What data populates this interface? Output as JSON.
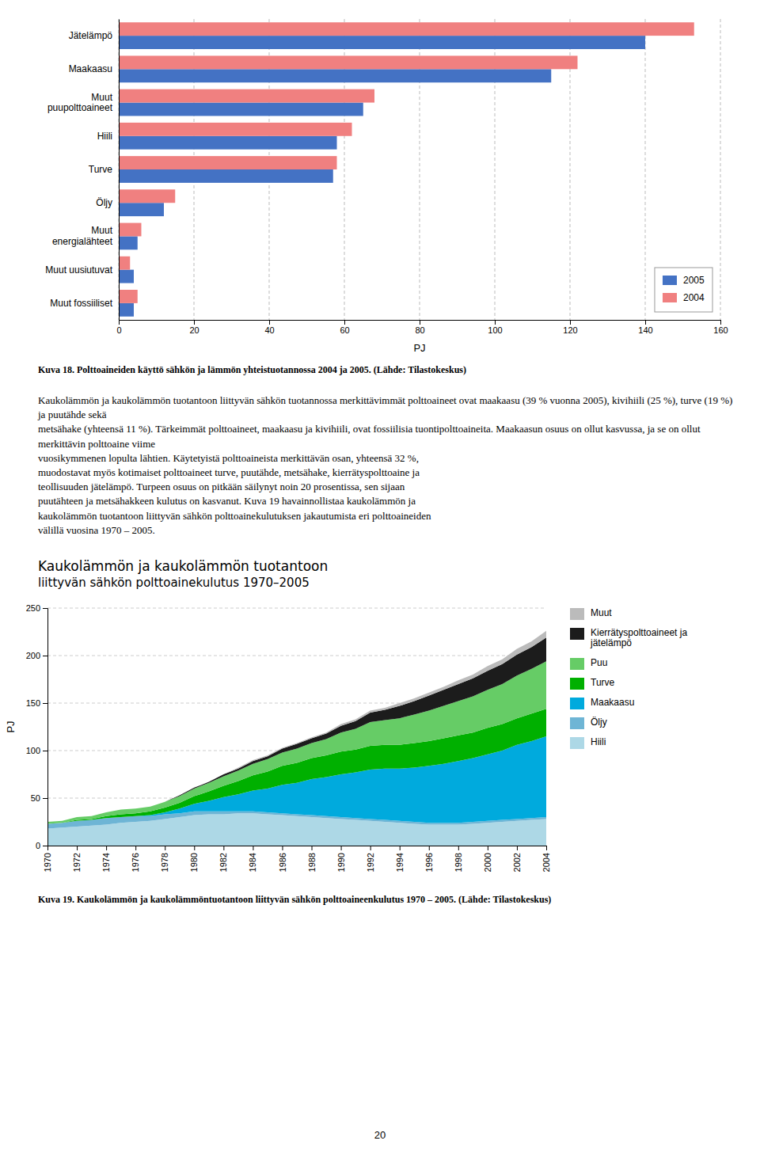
{
  "chart_data": [
    {
      "type": "bar",
      "orientation": "horizontal",
      "categories": [
        "Jätelämpö",
        "Maakaasu",
        "Muut\npuupolttoaineet",
        "Hiili",
        "Turve",
        "Öljy",
        "Muut\nenergialähteet",
        "Muut uusiutuvat",
        "Muut fossiiliset"
      ],
      "series": [
        {
          "name": "2005",
          "color": "#4472C4",
          "values": [
            140,
            115,
            65,
            58,
            57,
            12,
            5,
            4,
            4
          ]
        },
        {
          "name": "2004",
          "color": "#F08080",
          "values": [
            153,
            122,
            68,
            62,
            58,
            15,
            6,
            3,
            5
          ]
        }
      ],
      "xlabel": "PJ",
      "xlim": [
        0,
        160
      ],
      "xticks": [
        0,
        20,
        40,
        60,
        80,
        100,
        120,
        140,
        160
      ],
      "grid": true,
      "legend": "lower right",
      "caption": "Kuva 18. Polttoaineiden käyttö sähkön ja lämmön yhteistuotannossa 2004 ja 2005. (Lähde: Tilastokeskus)"
    },
    {
      "type": "area",
      "stacked": true,
      "title": "Kaukolämmön ja kaukolämmön tuotantoon",
      "subtitle": "liittyvän sähkön polttoainekulutus 1970–2005",
      "x": [
        1970,
        1971,
        1972,
        1973,
        1974,
        1975,
        1976,
        1977,
        1978,
        1979,
        1980,
        1981,
        1982,
        1983,
        1984,
        1985,
        1986,
        1987,
        1988,
        1989,
        1990,
        1991,
        1992,
        1993,
        1994,
        1995,
        1996,
        1997,
        1998,
        1999,
        2000,
        2001,
        2002,
        2003,
        2004
      ],
      "series": [
        {
          "name": "Hiili",
          "color": "#ADD8E6",
          "values": [
            18,
            19,
            20,
            21,
            22,
            24,
            25,
            26,
            28,
            30,
            32,
            33,
            33,
            34,
            34,
            33,
            32,
            31,
            30,
            29,
            28,
            27,
            26,
            25,
            24,
            23,
            22,
            22,
            22,
            23,
            24,
            25,
            26,
            27,
            28
          ]
        },
        {
          "name": "Öljy",
          "color": "#6EB5D5",
          "values": [
            5,
            5,
            6,
            6,
            7,
            6,
            6,
            5,
            5,
            4,
            4,
            3,
            3,
            2,
            2,
            2,
            2,
            2,
            2,
            2,
            2,
            2,
            2,
            2,
            2,
            2,
            2,
            2,
            2,
            2,
            2,
            2,
            2,
            2,
            2
          ]
        },
        {
          "name": "Maakaasu",
          "color": "#00AADD",
          "values": [
            0,
            0,
            0,
            0,
            0,
            0,
            0,
            1,
            2,
            5,
            8,
            11,
            15,
            18,
            22,
            25,
            30,
            33,
            38,
            41,
            45,
            48,
            52,
            54,
            55,
            57,
            60,
            62,
            65,
            67,
            70,
            73,
            78,
            81,
            85
          ]
        },
        {
          "name": "Turve",
          "color": "#00B000",
          "values": [
            0,
            0,
            1,
            1,
            2,
            3,
            3,
            4,
            5,
            6,
            8,
            10,
            12,
            14,
            16,
            18,
            20,
            21,
            22,
            23,
            24,
            24,
            25,
            25,
            25,
            26,
            26,
            27,
            27,
            27,
            28,
            28,
            28,
            29,
            29
          ]
        },
        {
          "name": "Puu",
          "color": "#66CC66",
          "values": [
            2,
            2,
            3,
            3,
            4,
            5,
            5,
            5,
            6,
            7,
            8,
            9,
            10,
            11,
            12,
            13,
            14,
            15,
            16,
            17,
            20,
            22,
            25,
            26,
            28,
            30,
            32,
            34,
            36,
            38,
            40,
            42,
            45,
            47,
            50
          ]
        },
        {
          "name": "Kierrätyspolttoaineet ja\njätelämpö",
          "color": "#1C1C1C",
          "values": [
            0,
            0,
            0,
            0,
            0,
            0,
            0,
            0,
            0,
            1,
            1,
            1,
            2,
            2,
            3,
            3,
            4,
            5,
            5,
            6,
            7,
            8,
            10,
            11,
            13,
            14,
            16,
            17,
            18,
            19,
            20,
            21,
            22,
            23,
            25
          ]
        },
        {
          "name": "Muut",
          "color": "#BBBBBB",
          "values": [
            0,
            0,
            0,
            0,
            0,
            0,
            0,
            0,
            0,
            0,
            0,
            0,
            0,
            1,
            1,
            1,
            1,
            1,
            1,
            1,
            2,
            2,
            2,
            2,
            3,
            3,
            3,
            3,
            4,
            4,
            5,
            5,
            6,
            6,
            7
          ]
        }
      ],
      "xlim": [
        1970,
        2004
      ],
      "xticks": [
        1970,
        1972,
        1974,
        1976,
        1978,
        1980,
        1982,
        1984,
        1986,
        1988,
        1990,
        1992,
        1994,
        1996,
        1998,
        2000,
        2002,
        2004
      ],
      "ylabel": "PJ",
      "ylim": [
        0,
        250
      ],
      "yticks": [
        0,
        50,
        100,
        150,
        200,
        250
      ],
      "grid": true,
      "legend": "right",
      "caption": "Kuva 19. Kaukolämmön ja kaukolämmöntuotantoon liittyvän sähkön polttoaineenkulutus 1970 – 2005.  (Lähde: Tilastokeskus)"
    }
  ],
  "body_text": [
    "Kaukolämmön ja kaukolämmön tuotantoon liittyvän sähkön tuotannossa merkittävimmät polttoaineet ovat maakaasu (39 % vuonna 2005), kivihiili (25 %), turve (19 %) ja puutähde sekä",
    "metsähake (yhteensä 11 %). Tärkeimmät polttoaineet, maakaasu ja kivihiili, ovat fossiilisia tuontipolttoaineita. Maakaasun osuus on ollut kasvussa, ja se on ollut merkittävin polttoaine viime",
    "vuosikymmenen lopulta lähtien. Käytetyistä polttoaineista merkittävän osan, yhteensä 32 %,",
    "muodostavat myös kotimaiset polttoaineet turve, puutähde, metsähake, kierrätyspolttoaine ja",
    "teollisuuden jätelämpö. Turpeen osuus on pitkään säilynyt noin 20 prosentissa, sen sijaan",
    "puutähteen ja metsähakkeen kulutus on kasvanut. Kuva 19 havainnollistaa kaukolämmön ja",
    "kaukolämmön tuotantoon liittyvän sähkön polttoainekulutuksen jakautumista eri polttoaineiden",
    "välillä vuosina 1970 – 2005."
  ],
  "page_number": "20"
}
